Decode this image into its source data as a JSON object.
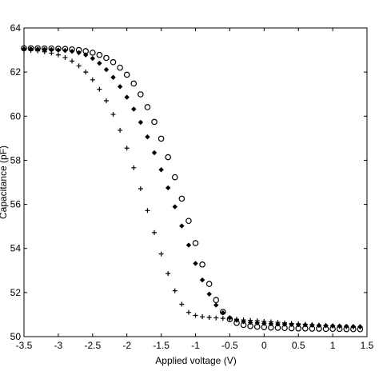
{
  "chart_data": {
    "type": "scatter",
    "title": "",
    "xlabel": "Applied voltage (V)",
    "ylabel": "Capacitance (pF)",
    "xlim": [
      -3.5,
      1.5
    ],
    "ylim": [
      50,
      64
    ],
    "grid": false,
    "legend": "none",
    "xticks": [
      "-3.5",
      "-3",
      "-2.5",
      "-2",
      "-1.5",
      "-1",
      "-0.5",
      "0",
      "0.5",
      "1",
      "1.5"
    ],
    "yticks": [
      "50",
      "52",
      "54",
      "56",
      "58",
      "60",
      "62",
      "64"
    ],
    "x": [
      -3.5,
      -3.4,
      -3.3,
      -3.2,
      -3.1,
      -3.0,
      -2.9,
      -2.8,
      -2.7,
      -2.6,
      -2.5,
      -2.4,
      -2.3,
      -2.2,
      -2.1,
      -2.0,
      -1.9,
      -1.8,
      -1.7,
      -1.6,
      -1.5,
      -1.4,
      -1.3,
      -1.2,
      -1.1,
      -1.0,
      -0.9,
      -0.8,
      -0.7,
      -0.6,
      -0.5,
      -0.4,
      -0.3,
      -0.2,
      -0.1,
      0.0,
      0.1,
      0.2,
      0.3,
      0.4,
      0.5,
      0.6,
      0.7,
      0.8,
      0.9,
      1.0,
      1.1,
      1.2,
      1.3,
      1.4
    ],
    "series": [
      {
        "marker": "plus",
        "color": "#000000",
        "values": [
          63.0,
          62.98,
          62.96,
          62.92,
          62.86,
          62.78,
          62.66,
          62.5,
          62.28,
          62.0,
          61.65,
          61.22,
          60.7,
          60.08,
          59.36,
          58.55,
          57.66,
          56.71,
          55.72,
          54.72,
          53.75,
          52.86,
          52.08,
          51.47,
          51.1,
          50.96,
          50.9,
          50.87,
          50.85,
          50.83,
          50.81,
          50.79,
          50.76,
          50.74,
          50.72,
          50.69,
          50.67,
          50.65,
          50.62,
          50.6,
          50.58,
          50.56,
          50.54,
          50.52,
          50.5,
          50.48,
          50.46,
          50.45,
          50.44,
          50.43
        ]
      },
      {
        "marker": "filled-diamond",
        "color": "#000000",
        "values": [
          63.05,
          63.05,
          63.04,
          63.03,
          63.02,
          63.0,
          62.98,
          62.94,
          62.88,
          62.78,
          62.62,
          62.4,
          62.11,
          61.76,
          61.34,
          60.86,
          60.32,
          59.72,
          59.06,
          58.34,
          57.57,
          56.75,
          55.89,
          55.02,
          54.15,
          53.32,
          52.57,
          51.93,
          51.43,
          51.08,
          50.86,
          50.74,
          50.68,
          50.64,
          50.62,
          50.6,
          50.58,
          50.57,
          50.56,
          50.55,
          50.54,
          50.53,
          50.52,
          50.51,
          50.5,
          50.49,
          50.48,
          50.47,
          50.46,
          50.45
        ]
      },
      {
        "marker": "open-circle",
        "color": "#000000",
        "values": [
          63.08,
          63.08,
          63.08,
          63.07,
          63.07,
          63.06,
          63.05,
          63.03,
          63.0,
          62.95,
          62.88,
          62.78,
          62.64,
          62.45,
          62.2,
          61.88,
          61.48,
          60.99,
          60.41,
          59.74,
          58.98,
          58.14,
          57.23,
          56.26,
          55.25,
          54.24,
          53.27,
          52.39,
          51.66,
          51.12,
          50.79,
          50.62,
          50.53,
          50.48,
          50.45,
          50.43,
          50.41,
          50.4,
          50.39,
          50.38,
          50.37,
          50.37,
          50.36,
          50.36,
          50.35,
          50.35,
          50.35,
          50.34,
          50.34,
          50.34
        ]
      }
    ]
  }
}
